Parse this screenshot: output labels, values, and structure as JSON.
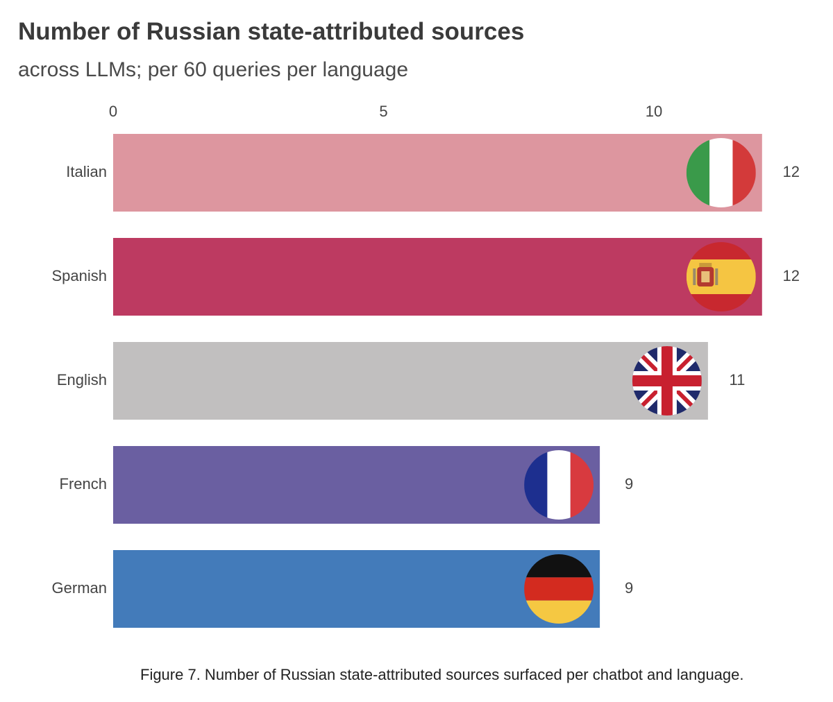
{
  "chart_data": {
    "type": "bar",
    "orientation": "horizontal",
    "title": "Number of Russian state-attributed sources",
    "subtitle": "across LLMs; per 60 queries per language",
    "categories": [
      "Italian",
      "Spanish",
      "English",
      "French",
      "German"
    ],
    "values": [
      12,
      12,
      11,
      9,
      9
    ],
    "xlim": [
      0,
      12
    ],
    "xticks": [
      0,
      5,
      10
    ],
    "tick_labels": [
      "0",
      "5",
      "10"
    ],
    "axis_position": "top",
    "grid": false,
    "bar_colors": [
      "#dd969f",
      "#bd3a61",
      "#c1bfbf",
      "#6a5fa1",
      "#437bba"
    ],
    "flag_icons": [
      "italy-flag-icon",
      "spain-flag-icon",
      "uk-flag-icon",
      "france-flag-icon",
      "germany-flag-icon"
    ]
  },
  "caption": "Figure 7. Number of Russian state-attributed sources surfaced per chatbot and language."
}
